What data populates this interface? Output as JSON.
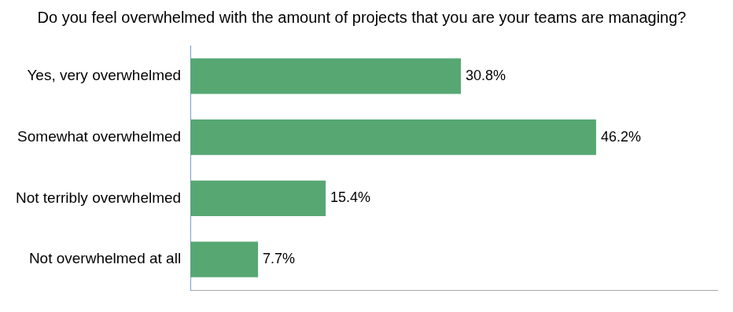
{
  "chart_data": {
    "type": "bar",
    "orientation": "horizontal",
    "title": "Do you feel overwhelmed with the amount of projects that you are your teams are managing?",
    "categories": [
      "Yes, very overwhelmed",
      "Somewhat overwhelmed",
      "Not terribly overwhelmed",
      "Not overwhelmed at all"
    ],
    "values": [
      30.8,
      46.2,
      15.4,
      7.7
    ],
    "value_labels": [
      "30.8%",
      "46.2%",
      "15.4%",
      "7.7%"
    ],
    "color": "#57a773",
    "xlim": [
      0,
      60
    ],
    "grid": false,
    "data_labels": true,
    "tick_labels": "y"
  }
}
